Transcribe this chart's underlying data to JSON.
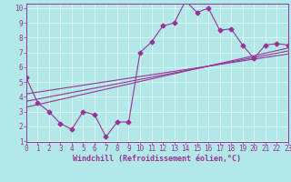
{
  "xlabel": "Windchill (Refroidissement éolien,°C)",
  "xlim": [
    0,
    23
  ],
  "ylim": [
    1,
    10
  ],
  "xticks": [
    0,
    1,
    2,
    3,
    4,
    5,
    6,
    7,
    8,
    9,
    10,
    11,
    12,
    13,
    14,
    15,
    16,
    17,
    18,
    19,
    20,
    21,
    22,
    23
  ],
  "yticks": [
    1,
    2,
    3,
    4,
    5,
    6,
    7,
    8,
    9,
    10
  ],
  "line_color": "#993399",
  "bg_color": "#b2e8e8",
  "grid_color": "#cceeee",
  "main_line": {
    "x": [
      0,
      1,
      2,
      3,
      4,
      5,
      6,
      7,
      8,
      9,
      10,
      11,
      12,
      13,
      14,
      15,
      16,
      17,
      18,
      19,
      20,
      21,
      22,
      23
    ],
    "y": [
      5.3,
      3.6,
      3.0,
      2.2,
      1.8,
      3.0,
      2.8,
      1.3,
      2.3,
      2.3,
      7.0,
      7.7,
      8.8,
      9.0,
      10.5,
      9.7,
      10.0,
      8.5,
      8.6,
      7.5,
      6.6,
      7.5,
      7.6,
      7.5
    ]
  },
  "trend_lines": [
    {
      "x": [
        0,
        23
      ],
      "y": [
        3.3,
        7.3
      ]
    },
    {
      "x": [
        0,
        23
      ],
      "y": [
        3.7,
        7.1
      ]
    },
    {
      "x": [
        0,
        23
      ],
      "y": [
        4.2,
        6.9
      ]
    }
  ],
  "marker": "D",
  "markersize": 2.5,
  "linewidth": 0.8,
  "tick_fontsize": 5.5,
  "label_fontsize": 6.0
}
